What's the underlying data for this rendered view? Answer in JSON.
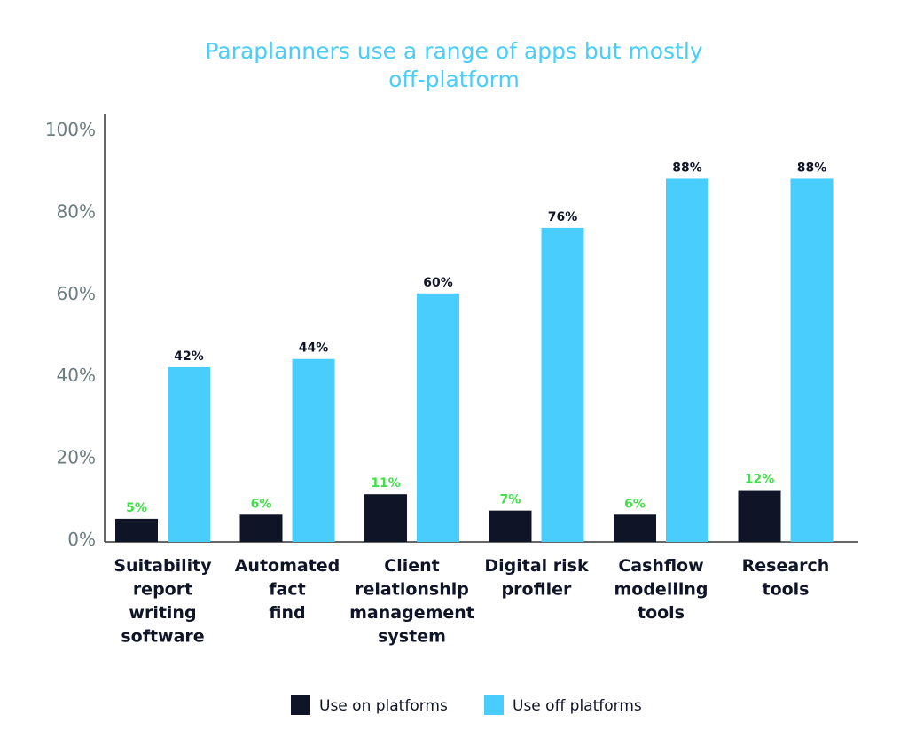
{
  "chart_data": {
    "type": "bar",
    "title": "Paraplanners use a range of apps but mostly off-platform",
    "title_lines": [
      "Paraplanners use a range of apps but mostly",
      "off-platform"
    ],
    "categories": [
      "Suitability report writing software",
      "Automated fact find",
      "Client relationship management system",
      "Digital risk profiler",
      "Cashflow modelling tools",
      "Research tools"
    ],
    "category_lines": [
      [
        "Suitability",
        "report",
        "writing",
        "software"
      ],
      [
        "Automated",
        "fact",
        "find"
      ],
      [
        "Client",
        "relationship",
        "management",
        "system"
      ],
      [
        "Digital risk",
        "profiler"
      ],
      [
        "Cashflow",
        "modelling",
        "tools"
      ],
      [
        "Research",
        "tools"
      ]
    ],
    "series": [
      {
        "name": "Use on platforms",
        "values": [
          5,
          6,
          11,
          7,
          6,
          12
        ],
        "labels": [
          "5%",
          "6%",
          "11%",
          "7%",
          "6%",
          "12%"
        ],
        "color": "#0f1427",
        "label_color": "#3fe04a"
      },
      {
        "name": "Use off platforms",
        "values": [
          42,
          44,
          60,
          76,
          88,
          88
        ],
        "labels": [
          "42%",
          "44%",
          "60%",
          "76%",
          "88%",
          "88%"
        ],
        "color": "#48cdfc",
        "label_color": "#0f1427"
      }
    ],
    "ylim": [
      0,
      100
    ],
    "yticks": [
      0,
      20,
      40,
      60,
      80,
      100
    ],
    "ytick_labels": [
      "0%",
      "20%",
      "40%",
      "60%",
      "80%",
      "100%"
    ],
    "xlabel": "",
    "ylabel": "",
    "grid": false,
    "legend_position": "bottom"
  }
}
